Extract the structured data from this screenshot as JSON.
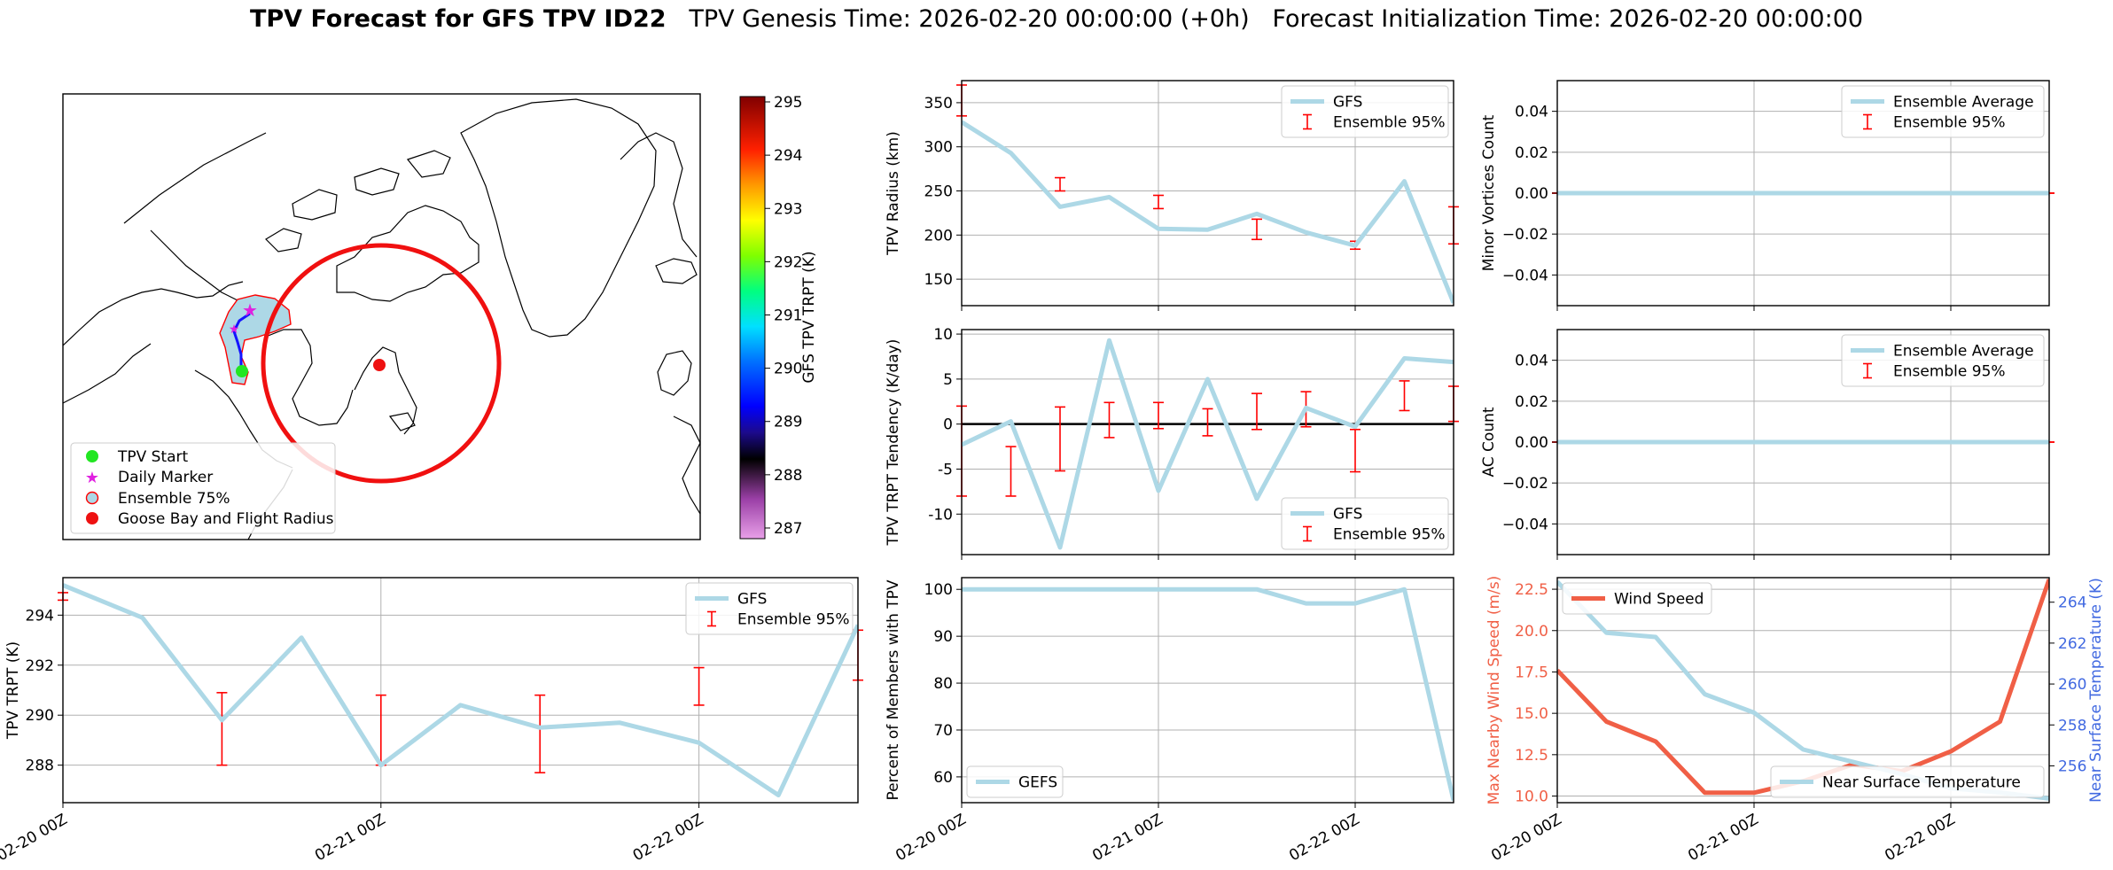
{
  "title": {
    "bold": "TPV Forecast for GFS TPV ID22",
    "genesis": "TPV Genesis Time: 2026-02-20 00:00:00 (+0h)",
    "init": "Forecast Initialization Time: 2026-02-20 00:00:00"
  },
  "colors": {
    "gfs_line": "#add8e6",
    "ensemble_bar": "#ff0000",
    "wind_line": "#f05f46",
    "temp_axis": "#4169e1",
    "track_start": "#22e622",
    "daily_marker": "#e020e0",
    "goose_bay": "#ee1111",
    "ensemble_fill": "#add8e6"
  },
  "time_ticks": [
    "02-20 00Z",
    "02-21 00Z",
    "02-22 00Z"
  ],
  "map": {
    "legend": [
      "TPV Start",
      "Daily Marker",
      "Ensemble 75%",
      "Goose Bay and Flight Radius"
    ],
    "colorbar": {
      "label": "GFS TPV TRPT (K)",
      "ticks": [
        295,
        294,
        293,
        292,
        291,
        290,
        289,
        288,
        287
      ],
      "range": [
        286.8,
        295.1
      ]
    }
  },
  "chart_data": [
    {
      "id": "trpt",
      "type": "line",
      "ylabel": "TPV TRPT (K)",
      "ylim": [
        286.5,
        295.5
      ],
      "yticks": [
        288,
        290,
        292,
        294
      ],
      "x": [
        0,
        0.25,
        0.5,
        0.75,
        1,
        1.25,
        1.5,
        1.75,
        2,
        2.25,
        2.5
      ],
      "series": [
        {
          "name": "GFS",
          "values": [
            295.2,
            293.9,
            289.8,
            293.1,
            288.0,
            290.4,
            289.5,
            289.7,
            288.9,
            286.8,
            293.6
          ]
        }
      ],
      "ensemble": [
        {
          "x": 0,
          "lo": 294.6,
          "hi": 294.9
        },
        {
          "x": 0.5,
          "lo": 288.0,
          "hi": 290.9
        },
        {
          "x": 1,
          "lo": 288.0,
          "hi": 290.8
        },
        {
          "x": 1.5,
          "lo": 287.7,
          "hi": 290.8
        },
        {
          "x": 2,
          "lo": 290.4,
          "hi": 291.9
        },
        {
          "x": 2.5,
          "lo": 291.4,
          "hi": 293.4
        }
      ],
      "legend": [
        "GFS",
        "Ensemble 95%"
      ],
      "legend_position": "upper-right",
      "grid": true
    },
    {
      "id": "radius",
      "type": "line",
      "ylabel": "TPV Radius (km)",
      "ylim": [
        120,
        375
      ],
      "yticks": [
        150,
        200,
        250,
        300,
        350
      ],
      "x": [
        0,
        0.25,
        0.5,
        0.75,
        1,
        1.25,
        1.5,
        1.75,
        2,
        2.25,
        2.5
      ],
      "series": [
        {
          "name": "GFS",
          "values": [
            328,
            293,
            232,
            243,
            207,
            206,
            224,
            203,
            188,
            261,
            123
          ]
        }
      ],
      "ensemble": [
        {
          "x": 0,
          "lo": 335,
          "hi": 370
        },
        {
          "x": 0.5,
          "lo": 250,
          "hi": 265
        },
        {
          "x": 1,
          "lo": 230,
          "hi": 245
        },
        {
          "x": 1.5,
          "lo": 195,
          "hi": 218
        },
        {
          "x": 2,
          "lo": 184,
          "hi": 193
        },
        {
          "x": 2.5,
          "lo": 190,
          "hi": 232
        }
      ],
      "legend": [
        "GFS",
        "Ensemble 95%"
      ],
      "legend_position": "upper-right",
      "grid": true
    },
    {
      "id": "tendency",
      "type": "line",
      "ylabel": "TPV TRPT Tendency (K/day)",
      "ylim": [
        -14.5,
        10.5
      ],
      "yticks": [
        -10,
        -5,
        0,
        5,
        10
      ],
      "x": [
        0,
        0.25,
        0.5,
        0.75,
        1,
        1.25,
        1.5,
        1.75,
        2,
        2.25,
        2.5
      ],
      "series": [
        {
          "name": "GFS",
          "values": [
            -2.3,
            0.3,
            -13.7,
            9.3,
            -7.4,
            5.0,
            -8.3,
            1.8,
            -0.3,
            7.3,
            6.9
          ]
        }
      ],
      "ensemble": [
        {
          "x": 0,
          "lo": -8.0,
          "hi": 2.0
        },
        {
          "x": 0.25,
          "lo": -8.0,
          "hi": -2.5
        },
        {
          "x": 0.5,
          "lo": -5.2,
          "hi": 1.9
        },
        {
          "x": 0.75,
          "lo": -1.5,
          "hi": 2.4
        },
        {
          "x": 1,
          "lo": -0.5,
          "hi": 2.4
        },
        {
          "x": 1.25,
          "lo": -1.3,
          "hi": 1.7
        },
        {
          "x": 1.5,
          "lo": -0.6,
          "hi": 3.4
        },
        {
          "x": 1.75,
          "lo": -0.3,
          "hi": 3.6
        },
        {
          "x": 2,
          "lo": -5.3,
          "hi": -0.6
        },
        {
          "x": 2.25,
          "lo": 1.5,
          "hi": 4.8
        },
        {
          "x": 2.5,
          "lo": 0.3,
          "hi": 4.2
        }
      ],
      "zero_line": true,
      "legend": [
        "GFS",
        "Ensemble 95%"
      ],
      "legend_position": "lower-right",
      "grid": true
    },
    {
      "id": "percent",
      "type": "line",
      "ylabel": "Percent of Members with TPV",
      "ylim": [
        54.5,
        102.5
      ],
      "yticks": [
        60,
        70,
        80,
        90,
        100
      ],
      "x": [
        0,
        0.25,
        0.5,
        0.75,
        1,
        1.25,
        1.5,
        1.75,
        2,
        2.25,
        2.5
      ],
      "series": [
        {
          "name": "GEFS",
          "values": [
            100,
            100,
            100,
            100,
            100,
            100,
            100,
            97,
            97,
            100,
            55
          ]
        }
      ],
      "legend": [
        "GEFS"
      ],
      "legend_position": "lower-left",
      "grid": true
    },
    {
      "id": "minor",
      "type": "line",
      "ylabel": "Minor Vortices Count",
      "ylim": [
        -0.055,
        0.055
      ],
      "yticks": [
        -0.04,
        -0.02,
        0.0,
        0.02,
        0.04
      ],
      "ytick_labels": [
        "−0.04",
        "−0.02",
        "0.00",
        "0.02",
        "0.04"
      ],
      "x": [
        0,
        0.25,
        0.5,
        0.75,
        1,
        1.25,
        1.5,
        1.75,
        2,
        2.25,
        2.5
      ],
      "series": [
        {
          "name": "Ensemble Average",
          "values": [
            0,
            0,
            0,
            0,
            0,
            0,
            0,
            0,
            0,
            0,
            0
          ]
        }
      ],
      "ensemble": [
        {
          "x": 0,
          "lo": 0,
          "hi": 0
        },
        {
          "x": 0.5,
          "lo": 0,
          "hi": 0
        },
        {
          "x": 1,
          "lo": 0,
          "hi": 0
        },
        {
          "x": 1.5,
          "lo": 0,
          "hi": 0
        },
        {
          "x": 2,
          "lo": 0,
          "hi": 0
        },
        {
          "x": 2.5,
          "lo": 0,
          "hi": 0
        }
      ],
      "legend": [
        "Ensemble Average",
        "Ensemble 95%"
      ],
      "legend_position": "upper-right",
      "grid": true
    },
    {
      "id": "ac",
      "type": "line",
      "ylabel": "AC Count",
      "ylim": [
        -0.055,
        0.055
      ],
      "yticks": [
        -0.04,
        -0.02,
        0.0,
        0.02,
        0.04
      ],
      "ytick_labels": [
        "−0.04",
        "−0.02",
        "0.00",
        "0.02",
        "0.04"
      ],
      "x": [
        0,
        0.25,
        0.5,
        0.75,
        1,
        1.25,
        1.5,
        1.75,
        2,
        2.25,
        2.5
      ],
      "series": [
        {
          "name": "Ensemble Average",
          "values": [
            0,
            0,
            0,
            0,
            0,
            0,
            0,
            0,
            0,
            0,
            0
          ]
        }
      ],
      "ensemble": [
        {
          "x": 0,
          "lo": 0,
          "hi": 0
        },
        {
          "x": 0.5,
          "lo": 0,
          "hi": 0
        },
        {
          "x": 1,
          "lo": 0,
          "hi": 0
        },
        {
          "x": 1.5,
          "lo": 0,
          "hi": 0
        },
        {
          "x": 2,
          "lo": 0,
          "hi": 0
        },
        {
          "x": 2.5,
          "lo": 0,
          "hi": 0
        }
      ],
      "legend": [
        "Ensemble Average",
        "Ensemble 95%"
      ],
      "legend_position": "upper-right",
      "grid": true
    },
    {
      "id": "wind_temp",
      "type": "line",
      "ylabel": "Max Nearby Wind Speed (m/s)",
      "ylabel_right": "Near Surface Temperature (K)",
      "ylim": [
        9.6,
        23.2
      ],
      "yticks": [
        10.0,
        12.5,
        15.0,
        17.5,
        20.0,
        22.5
      ],
      "ylim_right": [
        254.2,
        265.2
      ],
      "yticks_right": [
        256,
        258,
        260,
        262,
        264
      ],
      "x": [
        0,
        0.25,
        0.5,
        0.75,
        1,
        1.25,
        1.5,
        1.75,
        2,
        2.25,
        2.5
      ],
      "series": [
        {
          "name": "Wind Speed",
          "axis": "left",
          "values": [
            17.6,
            14.5,
            13.3,
            10.2,
            10.2,
            10.9,
            11.9,
            11.5,
            12.7,
            14.5,
            23.1
          ]
        },
        {
          "name": "Near Surface Temperature",
          "axis": "right",
          "values": [
            265.0,
            262.5,
            262.3,
            259.5,
            258.6,
            256.8,
            256.2,
            255.6,
            254.9,
            254.7,
            254.4
          ]
        }
      ],
      "legend_left": "Wind Speed",
      "legend_left_position": "upper-left",
      "legend_right": "Near Surface Temperature",
      "legend_right_position": "lower-right",
      "grid": true
    }
  ]
}
